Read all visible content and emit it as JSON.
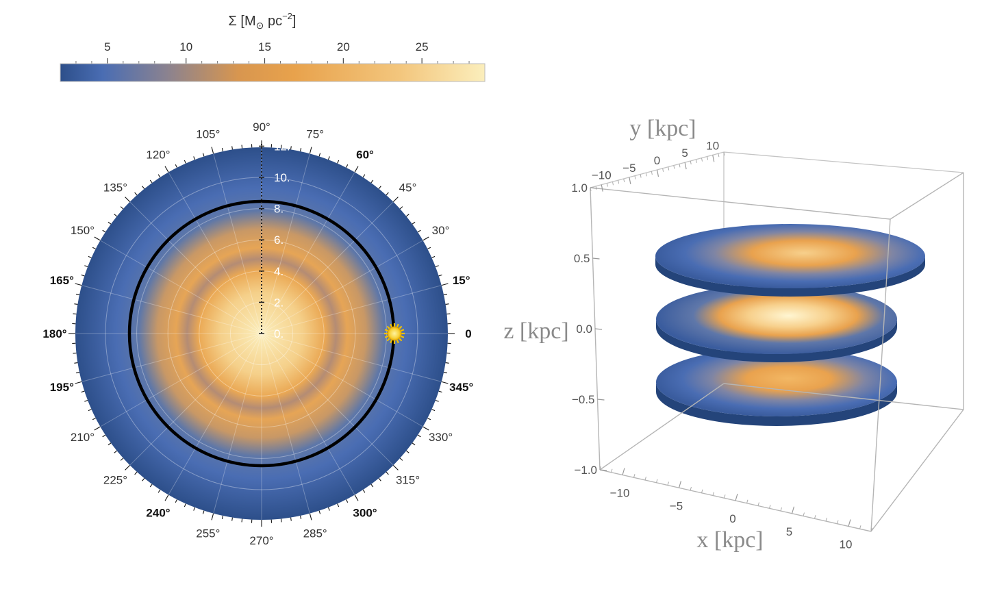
{
  "colors": {
    "dark_blue": "#2d4f8a",
    "mid_blue": "#4a6db3",
    "orange": "#e8a24c",
    "cream": "#fbeebc"
  },
  "colorbar": {
    "label_sigma": "Σ [M",
    "label_sub": "⊙",
    "label_unit": " pc",
    "label_exp": "−2",
    "label_close": "]",
    "ticks": [
      "5",
      "10",
      "15",
      "20",
      "25"
    ]
  },
  "polar": {
    "angle_labels": [
      "0",
      "15°",
      "30°",
      "45°",
      "60°",
      "75°",
      "90°",
      "105°",
      "120°",
      "135°",
      "150°",
      "165°",
      "180°",
      "195°",
      "210°",
      "225°",
      "240°",
      "255°",
      "270°",
      "285°",
      "300°",
      "315°",
      "330°",
      "345°"
    ],
    "bold_angle_labels": [
      "0",
      "15°",
      "60°",
      "165°",
      "180°",
      "195°",
      "240°",
      "300°",
      "345°"
    ],
    "radial_labels": [
      "0.",
      "2.",
      "4.",
      "6.",
      "8.",
      "10.",
      "12."
    ],
    "sun_icon": "sun-icon"
  },
  "box3d": {
    "ylabel": "y [kpc]",
    "xlabel": "x [kpc]",
    "zlabel": "z [kpc]",
    "yticks": [
      "−10",
      "−5",
      "0",
      "5",
      "10"
    ],
    "xticks": [
      "−10",
      "−5",
      "0",
      "5",
      "10"
    ],
    "zticks": [
      "1.0",
      "0.5",
      "0.0",
      "−0.5",
      "−1.0"
    ]
  },
  "chart_data": [
    {
      "type": "heatmap",
      "colorbar_range": [
        2,
        29
      ],
      "colorbar_ticks": [
        5,
        10,
        15,
        20,
        25
      ],
      "angular_ticks_deg": [
        0,
        15,
        30,
        45,
        60,
        75,
        90,
        105,
        120,
        135,
        150,
        165,
        180,
        195,
        210,
        225,
        240,
        255,
        270,
        285,
        300,
        315,
        330,
        345
      ],
      "radial_ticks": [
        0,
        2,
        4,
        6,
        8,
        10,
        12
      ],
      "rlim": [
        0,
        12
      ],
      "solar_circle_radius": 8.5,
      "sun_position": {
        "r": 8.5,
        "angle_deg": 0
      }
    },
    {
      "type": "heatmap",
      "xlim": [
        -12,
        12
      ],
      "ylim": [
        -12,
        12
      ],
      "zlim": [
        -1,
        1
      ],
      "slice_z": [
        0.5,
        0.0,
        -0.5
      ],
      "xticks": [
        -10,
        -5,
        0,
        5,
        10
      ],
      "yticks": [
        -10,
        -5,
        0,
        5,
        10
      ],
      "zticks": [
        1.0,
        0.5,
        0.0,
        -0.5,
        -1.0
      ]
    }
  ]
}
